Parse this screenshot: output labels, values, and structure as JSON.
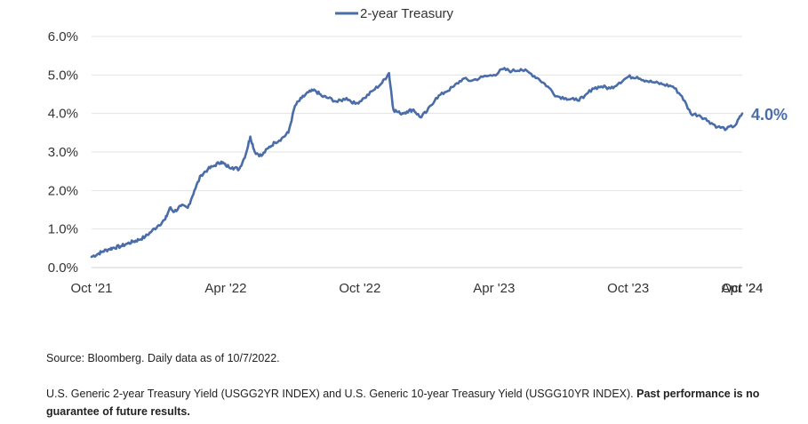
{
  "chart_data": {
    "type": "line",
    "legend": {
      "position": "top-center",
      "entries": [
        "2-year Treasury"
      ]
    },
    "x_ticks": [
      "Oct '21",
      "Apr '22",
      "Oct '22",
      "Apr '23",
      "Oct '23",
      "Apr '24",
      "Oct '24"
    ],
    "y_ticks": [
      "0.0%",
      "1.0%",
      "2.0%",
      "3.0%",
      "4.0%",
      "5.0%",
      "6.0%"
    ],
    "ylim": [
      0,
      6
    ],
    "grid": "horizontal",
    "end_label": "4.0%",
    "colors": {
      "line": "#4a6ca8",
      "grid": "#e3e3e3"
    },
    "series": [
      {
        "name": "2-year Treasury",
        "x_unit": "months since Oct '21",
        "points": [
          [
            0,
            0.28
          ],
          [
            0.3,
            0.36
          ],
          [
            0.5,
            0.42
          ],
          [
            0.8,
            0.48
          ],
          [
            1.0,
            0.52
          ],
          [
            1.3,
            0.55
          ],
          [
            1.6,
            0.62
          ],
          [
            1.9,
            0.68
          ],
          [
            2.1,
            0.72
          ],
          [
            2.4,
            0.8
          ],
          [
            2.7,
            0.95
          ],
          [
            3.0,
            1.1
          ],
          [
            3.3,
            1.25
          ],
          [
            3.5,
            1.55
          ],
          [
            3.7,
            1.45
          ],
          [
            4.0,
            1.6
          ],
          [
            4.3,
            1.55
          ],
          [
            4.6,
            2.0
          ],
          [
            4.9,
            2.4
          ],
          [
            5.2,
            2.55
          ],
          [
            5.5,
            2.65
          ],
          [
            5.8,
            2.75
          ],
          [
            6.0,
            2.65
          ],
          [
            6.3,
            2.6
          ],
          [
            6.6,
            2.55
          ],
          [
            6.9,
            2.95
          ],
          [
            7.1,
            3.4
          ],
          [
            7.3,
            3.0
          ],
          [
            7.6,
            2.9
          ],
          [
            7.9,
            3.1
          ],
          [
            8.2,
            3.25
          ],
          [
            8.5,
            3.35
          ],
          [
            8.8,
            3.5
          ],
          [
            9.1,
            4.2
          ],
          [
            9.4,
            4.4
          ],
          [
            9.7,
            4.55
          ],
          [
            10.0,
            4.6
          ],
          [
            10.3,
            4.45
          ],
          [
            10.6,
            4.4
          ],
          [
            11.0,
            4.3
          ],
          [
            11.4,
            4.4
          ],
          [
            11.8,
            4.25
          ],
          [
            12.2,
            4.4
          ],
          [
            12.6,
            4.6
          ],
          [
            13.0,
            4.8
          ],
          [
            13.3,
            5.05
          ],
          [
            13.5,
            4.1
          ],
          [
            13.8,
            4.0
          ],
          [
            14.1,
            4.05
          ],
          [
            14.4,
            4.1
          ],
          [
            14.7,
            3.9
          ],
          [
            15.0,
            4.05
          ],
          [
            15.4,
            4.4
          ],
          [
            15.8,
            4.55
          ],
          [
            16.2,
            4.7
          ],
          [
            16.6,
            4.9
          ],
          [
            17.0,
            4.85
          ],
          [
            17.5,
            4.95
          ],
          [
            18.0,
            5.0
          ],
          [
            18.4,
            5.15
          ],
          [
            18.8,
            5.1
          ],
          [
            19.2,
            5.15
          ],
          [
            19.6,
            5.05
          ],
          [
            20.0,
            4.9
          ],
          [
            20.4,
            4.7
          ],
          [
            20.8,
            4.45
          ],
          [
            21.2,
            4.4
          ],
          [
            21.6,
            4.35
          ],
          [
            22.0,
            4.4
          ],
          [
            22.4,
            4.65
          ],
          [
            22.8,
            4.7
          ],
          [
            23.2,
            4.65
          ],
          [
            23.6,
            4.8
          ],
          [
            24.0,
            4.95
          ],
          [
            24.4,
            4.95
          ],
          [
            24.8,
            4.85
          ],
          [
            25.2,
            4.8
          ],
          [
            25.6,
            4.75
          ],
          [
            26.0,
            4.7
          ],
          [
            26.4,
            4.45
          ],
          [
            26.8,
            4.0
          ],
          [
            27.2,
            3.95
          ],
          [
            27.6,
            3.8
          ],
          [
            28.0,
            3.65
          ],
          [
            28.4,
            3.6
          ],
          [
            28.8,
            3.7
          ],
          [
            29.1,
            4.0
          ]
        ]
      }
    ]
  },
  "footnotes": {
    "source": "Source: Bloomberg. Daily data as of 10/7/2022.",
    "description": "U.S. Generic 2-year Treasury Yield (USGG2YR INDEX) and U.S. Generic 10-year Treasury Yield (USGG10YR INDEX). ",
    "disclaimer": "Past performance is no guarantee of future results."
  }
}
